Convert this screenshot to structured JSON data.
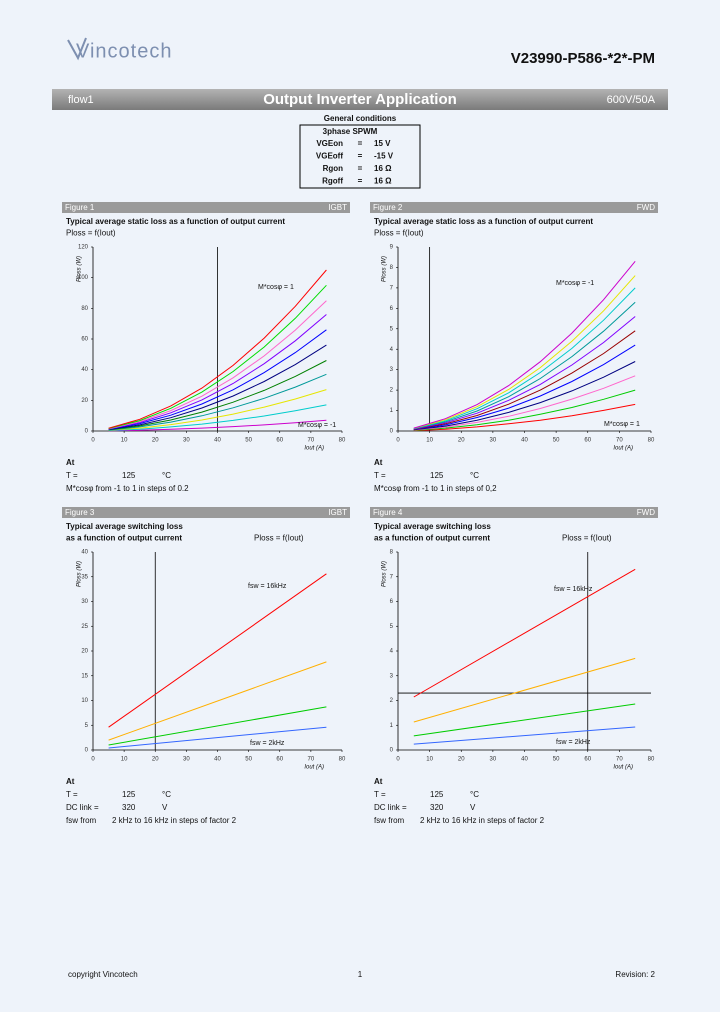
{
  "header": {
    "logo": "Vincotech",
    "part": "V23990-P586-*2*-PM"
  },
  "banner": {
    "left": "flow1",
    "title": "Output Inverter Application",
    "right": "600V/50A"
  },
  "conditions": {
    "title": "General conditions",
    "mode": "3phase SPWM",
    "rows": [
      [
        "VGEon",
        "=",
        "15 V"
      ],
      [
        "VGEoff",
        "=",
        "-15 V"
      ],
      [
        "Rgon",
        "=",
        "16 Ω"
      ],
      [
        "Rgoff",
        "=",
        "16 Ω"
      ]
    ]
  },
  "chart_data": [
    {
      "type": "line",
      "figure": "Figure 1",
      "device": "IGBT",
      "title": [
        "Typical average static loss as a function of output current"
      ],
      "formula": "Ploss = f(Iout)",
      "xlabel": "Iout (A)",
      "ylabel": "Ploss (W)",
      "x": [
        5,
        15,
        25,
        35,
        45,
        55,
        65,
        75
      ],
      "series": [
        {
          "color": "#cc00cc",
          "values": [
            0.1,
            0.5,
            1.1,
            1.9,
            2.9,
            4.0,
            5.4,
            7
          ]
        },
        {
          "color": "#00cccc",
          "values": [
            0.3,
            1.2,
            2.7,
            4.5,
            6.9,
            9.8,
            13.2,
            17
          ]
        },
        {
          "color": "#e6e600",
          "values": [
            0.5,
            1.9,
            4.2,
            7.2,
            11.0,
            15.6,
            20.9,
            27
          ]
        },
        {
          "color": "#009999",
          "values": [
            0.6,
            2.7,
            5.8,
            9.9,
            15.1,
            21.3,
            28.6,
            37
          ]
        },
        {
          "color": "#008000",
          "values": [
            0.8,
            3.3,
            7.2,
            12.3,
            18.8,
            26.5,
            35.6,
            46
          ]
        },
        {
          "color": "#000080",
          "values": [
            1.0,
            4.0,
            8.7,
            15.0,
            22.8,
            32.3,
            43.3,
            56
          ]
        },
        {
          "color": "#0000ff",
          "values": [
            1.1,
            4.8,
            10.3,
            17.6,
            26.9,
            38.1,
            51.1,
            66
          ]
        },
        {
          "color": "#8000ff",
          "values": [
            1.3,
            5.5,
            11.9,
            20.3,
            31.0,
            43.9,
            58.8,
            76
          ]
        },
        {
          "color": "#ff66cc",
          "values": [
            1.4,
            6.1,
            13.3,
            22.7,
            34.7,
            49.0,
            65.8,
            85
          ]
        },
        {
          "color": "#00dd00",
          "values": [
            1.6,
            6.8,
            14.8,
            25.4,
            38.8,
            54.8,
            73.5,
            95
          ]
        },
        {
          "color": "#ff0000",
          "values": [
            1.8,
            7.6,
            16.4,
            28.0,
            42.8,
            60.6,
            81.3,
            105
          ]
        }
      ],
      "xlim": [
        0,
        80
      ],
      "xticks": [
        0,
        10,
        20,
        30,
        40,
        50,
        60,
        70,
        80
      ],
      "ylim": [
        0,
        120
      ],
      "yticks": [
        0,
        20,
        40,
        60,
        80,
        100,
        120
      ],
      "vline": 40,
      "annotations": [
        "M*cosφ = 1",
        "M*cosφ = -1"
      ],
      "notes": [
        [
          "At"
        ],
        [
          "T =",
          "125",
          "°C"
        ],
        [
          "M*cosφ from -1 to 1 in steps of 0.2"
        ]
      ]
    },
    {
      "type": "line",
      "figure": "Figure 2",
      "device": "FWD",
      "title": [
        "Typical average static loss as a function of output current"
      ],
      "formula": "Ploss = f(Iout)",
      "xlabel": "Iout (A)",
      "ylabel": "Ploss (W)",
      "x": [
        5,
        15,
        25,
        35,
        45,
        55,
        65,
        75
      ],
      "series": [
        {
          "color": "#ff0000",
          "values": [
            0.02,
            0.09,
            0.2,
            0.35,
            0.53,
            0.75,
            1.01,
            1.3
          ]
        },
        {
          "color": "#00cc00",
          "values": [
            0.03,
            0.14,
            0.31,
            0.53,
            0.82,
            1.15,
            1.55,
            2.0
          ]
        },
        {
          "color": "#ff66cc",
          "values": [
            0.05,
            0.19,
            0.42,
            0.72,
            1.1,
            1.56,
            2.09,
            2.7
          ]
        },
        {
          "color": "#000080",
          "values": [
            0.06,
            0.24,
            0.53,
            0.91,
            1.39,
            1.96,
            2.63,
            3.4
          ]
        },
        {
          "color": "#0000ff",
          "values": [
            0.07,
            0.3,
            0.66,
            1.12,
            1.71,
            2.42,
            3.25,
            4.2
          ]
        },
        {
          "color": "#990000",
          "values": [
            0.08,
            0.35,
            0.76,
            1.31,
            2.0,
            2.83,
            3.79,
            4.9
          ]
        },
        {
          "color": "#8000ff",
          "values": [
            0.1,
            0.4,
            0.87,
            1.5,
            2.28,
            3.23,
            4.33,
            5.6
          ]
        },
        {
          "color": "#009999",
          "values": [
            0.11,
            0.45,
            0.98,
            1.68,
            2.57,
            3.64,
            4.88,
            6.3
          ]
        },
        {
          "color": "#00cccc",
          "values": [
            0.12,
            0.5,
            1.09,
            1.87,
            2.86,
            4.04,
            5.42,
            7.0
          ]
        },
        {
          "color": "#e6e600",
          "values": [
            0.13,
            0.55,
            1.19,
            2.03,
            3.1,
            4.39,
            5.88,
            7.6
          ]
        },
        {
          "color": "#cc00cc",
          "values": [
            0.14,
            0.6,
            1.29,
            2.22,
            3.39,
            4.79,
            6.42,
            8.3
          ]
        }
      ],
      "xlim": [
        0,
        80
      ],
      "xticks": [
        0,
        10,
        20,
        30,
        40,
        50,
        60,
        70,
        80
      ],
      "ylim": [
        0,
        9
      ],
      "yticks": [
        0,
        1,
        2,
        3,
        4,
        5,
        6,
        7,
        8,
        9
      ],
      "vline": 10,
      "annotations": [
        "M*cosφ = -1",
        "M*cosφ = 1"
      ],
      "notes": [
        [
          "At"
        ],
        [
          "T =",
          "125",
          "°C"
        ],
        [
          "M*cosφ from -1 to 1 in steps of 0,2"
        ]
      ]
    },
    {
      "type": "line",
      "figure": "Figure 3",
      "device": "IGBT",
      "title": [
        "Typical average switching loss",
        "as a function of output current"
      ],
      "formula": "Ploss = f(Iout)",
      "xlabel": "Iout (A)",
      "ylabel": "Ploss (W)",
      "x": [
        5,
        75
      ],
      "series": [
        {
          "color": "#ff0000",
          "values": [
            4.6,
            35.6
          ]
        },
        {
          "color": "#ffb000",
          "values": [
            2.0,
            17.8
          ]
        },
        {
          "color": "#00cc00",
          "values": [
            1.0,
            8.7
          ]
        },
        {
          "color": "#3366ff",
          "values": [
            0.4,
            4.6
          ]
        }
      ],
      "xlim": [
        0,
        80
      ],
      "xticks": [
        0,
        10,
        20,
        30,
        40,
        50,
        60,
        70,
        80
      ],
      "ylim": [
        0,
        40
      ],
      "yticks": [
        0,
        5,
        10,
        15,
        20,
        25,
        30,
        35,
        40
      ],
      "vline": 20,
      "annotations": [
        "fsw = 16kHz",
        "fsw = 2kHz"
      ],
      "notes": [
        [
          "At"
        ],
        [
          "T =",
          "125",
          "°C"
        ],
        [
          "DC link =",
          "320",
          "V"
        ],
        [
          "fsw from",
          "2 kHz to 16 kHz in steps of factor 2"
        ]
      ]
    },
    {
      "type": "line",
      "figure": "Figure 4",
      "device": "FWD",
      "title": [
        "Typical average switching loss",
        "as a function of output current"
      ],
      "formula": "Ploss = f(Iout)",
      "xlabel": "Iout (A)",
      "ylabel": "Ploss (W)",
      "x": [
        5,
        75
      ],
      "series": [
        {
          "color": "#ff0000",
          "values": [
            2.14,
            7.3
          ]
        },
        {
          "color": "#ffb000",
          "values": [
            1.13,
            3.7
          ]
        },
        {
          "color": "#00cc00",
          "values": [
            0.57,
            1.86
          ]
        },
        {
          "color": "#3366ff",
          "values": [
            0.24,
            0.93
          ]
        }
      ],
      "xlim": [
        0,
        80
      ],
      "xticks": [
        0,
        10,
        20,
        30,
        40,
        50,
        60,
        70,
        80
      ],
      "ylim": [
        0,
        8
      ],
      "yticks": [
        0,
        1,
        2,
        3,
        4,
        5,
        6,
        7,
        8
      ],
      "vline": 60,
      "hline": 2.3,
      "annotations": [
        "fsw = 16kHz",
        "fsw = 2kHz"
      ],
      "notes": [
        [
          "At"
        ],
        [
          "T =",
          "125",
          "°C"
        ],
        [
          "DC link =",
          "320",
          "V"
        ],
        [
          "fsw from",
          "2 kHz to 16 kHz in steps of factor 2"
        ]
      ]
    }
  ],
  "footer": {
    "left": "copyright Vincotech",
    "center": "1",
    "right": "Revision: 2"
  }
}
